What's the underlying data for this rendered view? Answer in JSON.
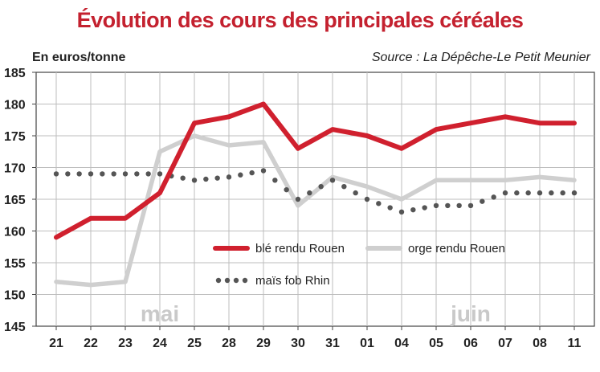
{
  "chart_data": {
    "type": "line",
    "title": "Évolution des cours des principales céréales",
    "ylabel": "En euros/tonne",
    "source": "Source : La Dépêche-Le Petit Meunier",
    "categories": [
      "21",
      "22",
      "23",
      "24",
      "25",
      "28",
      "29",
      "30",
      "31",
      "01",
      "04",
      "05",
      "06",
      "07",
      "08",
      "11"
    ],
    "month_labels": [
      {
        "text": "mai",
        "category_index": 3
      },
      {
        "text": "juin",
        "category_index": 12
      }
    ],
    "ylim": [
      145,
      185
    ],
    "yticks": [
      145,
      150,
      155,
      160,
      165,
      170,
      175,
      180,
      185
    ],
    "grid": true,
    "legend_position": "bottom-center",
    "series": [
      {
        "name": "blé rendu Rouen",
        "style": "solid",
        "color": "#d0202e",
        "values": [
          159,
          162,
          162,
          166,
          177,
          178,
          180,
          173,
          176,
          175,
          173,
          176,
          177,
          178,
          177,
          177
        ]
      },
      {
        "name": "orge rendu Rouen",
        "style": "solid",
        "color": "#cfcfcf",
        "values": [
          152,
          151.5,
          152,
          172.5,
          175,
          173.5,
          174,
          164,
          168.5,
          167,
          165,
          168,
          168,
          168,
          168.5,
          168
        ]
      },
      {
        "name": "maïs fob Rhin",
        "style": "dotted",
        "color": "#555555",
        "values": [
          169,
          169,
          169,
          169,
          168,
          168.5,
          169.5,
          165,
          168,
          165,
          163,
          164,
          164,
          166,
          166,
          166
        ]
      }
    ]
  }
}
